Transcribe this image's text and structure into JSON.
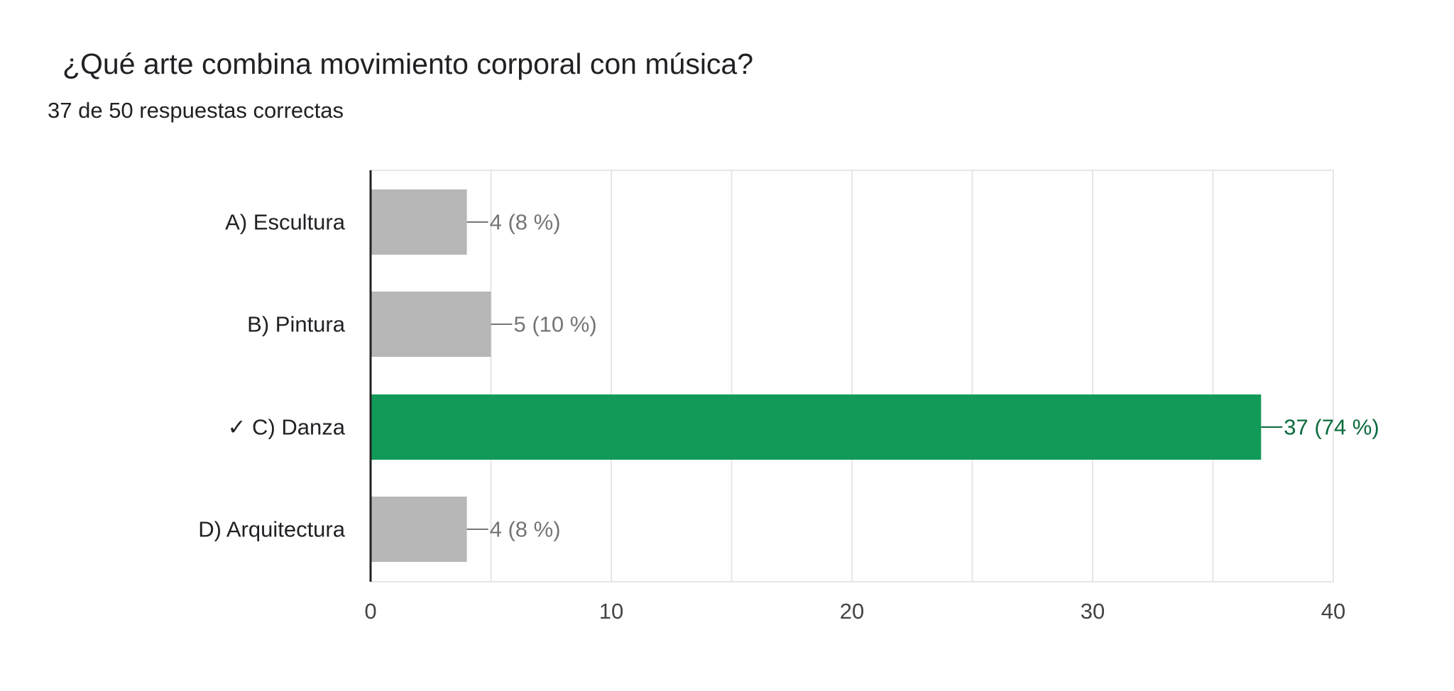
{
  "question": {
    "title": "¿Qué arte combina movimiento corporal con música?",
    "summary": "37 de 50 respuestas correctas"
  },
  "chart_data": {
    "type": "bar",
    "orientation": "horizontal",
    "categories": [
      "A) Escultura",
      "B) Pintura",
      "✓ C) Danza",
      "D) Arquitectura"
    ],
    "values": [
      4,
      5,
      37,
      4
    ],
    "data_labels": [
      "4 (8 %)",
      "5 (10 %)",
      "37 (74 %)",
      "4 (8 %)"
    ],
    "correct_index": 2,
    "xlim": [
      0,
      40
    ],
    "x_ticks": [
      0,
      10,
      20,
      30,
      40
    ],
    "x_tick_labels": [
      "0",
      "10",
      "20",
      "30",
      "40"
    ],
    "minor_gridlines": [
      5,
      15,
      25,
      35
    ],
    "grid": true,
    "colors": {
      "default_bar": "#b7b7b7",
      "correct_bar": "#129a58",
      "default_label": "#757575",
      "correct_label": "#0b6b3c",
      "gridline": "#e6e6e6",
      "axis": "#222222",
      "tick_label": "#444444"
    }
  }
}
